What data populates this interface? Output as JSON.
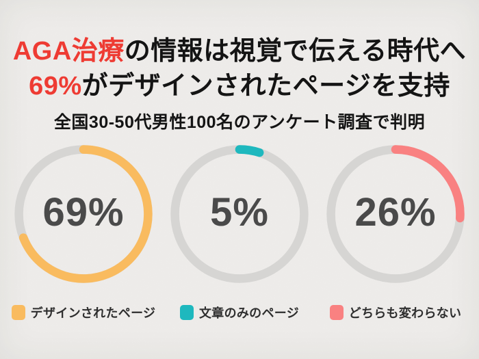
{
  "page": {
    "background_color": "#f5f4f2"
  },
  "header": {
    "title_line1": {
      "highlight": "AGA治療",
      "rest": "の情報は視覚で伝える時代へ"
    },
    "title_line2": {
      "highlight": "69%",
      "rest": "がデザインされたページを支持"
    },
    "subtitle": "全国30-50代男性100名のアンケート調査で判明",
    "highlight_color": "#ee3b33",
    "text_color": "#141414"
  },
  "chart_data": {
    "type": "pie",
    "variant": "donut-trio",
    "title": "AGA治療の情報は視覚で伝える時代へ 69%がデザインされたページを支持",
    "subtitle": "全国30-50代男性100名のアンケート調査で判明",
    "unit": "%",
    "arc_start": "top",
    "arc_direction": "clockwise",
    "track_color": "#d6d5d3",
    "value_text_color": "#4a4a4a",
    "legend_position": "bottom",
    "segments": [
      {
        "label": "デザインされたページ",
        "value": 69,
        "display": "69%",
        "color": "#f9bb5f"
      },
      {
        "label": "文章のみのページ",
        "value": 5,
        "display": "5%",
        "color": "#1eb8be"
      },
      {
        "label": "どちらも変わらない",
        "value": 26,
        "display": "26%",
        "color": "#f98181"
      }
    ]
  }
}
